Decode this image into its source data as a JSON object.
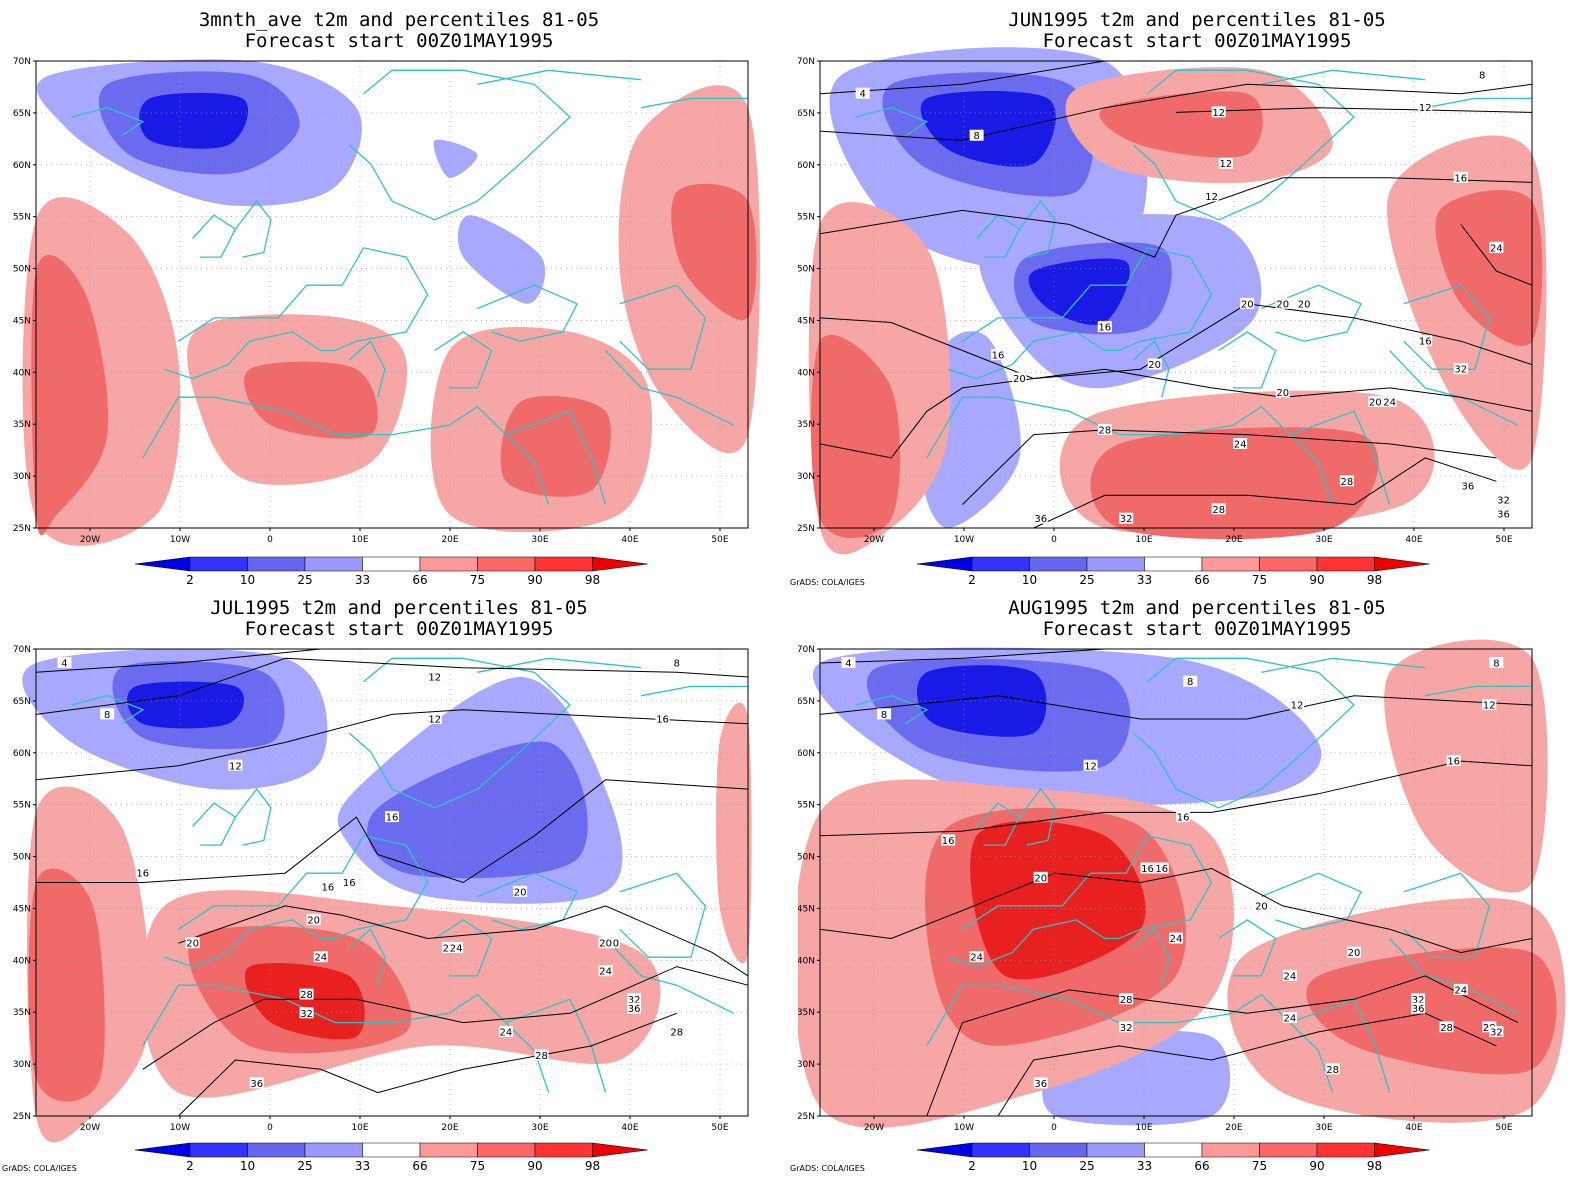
{
  "panels": [
    {
      "id": "p1",
      "title_line1": "3mnth_ave t2m and percentiles 81-05",
      "title_line2": "Forecast start 00Z01MAY1995",
      "credit": "",
      "contour_labels": []
    },
    {
      "id": "p2",
      "title_line1": "JUN1995 t2m and percentiles 81-05",
      "title_line2": "Forecast start 00Z01MAY1995",
      "credit": "GrADS: COLA/IGES",
      "contour_labels": [
        "4",
        "8",
        "8",
        "12",
        "12",
        "12",
        "12",
        "16",
        "16",
        "16",
        "16",
        "20",
        "20",
        "20",
        "20",
        "20",
        "20",
        "20",
        "24",
        "24",
        "24",
        "28",
        "28",
        "28",
        "32",
        "32",
        "32",
        "36",
        "36",
        "36"
      ]
    },
    {
      "id": "p3",
      "title_line1": "JUL1995 t2m and percentiles 81-05",
      "title_line2": "Forecast start 00Z01MAY1995",
      "credit": "GrADS: COLA/IGES",
      "contour_labels": [
        "4",
        "8",
        "8",
        "12",
        "12",
        "12",
        "16",
        "16",
        "16",
        "16",
        "16",
        "20",
        "20",
        "20",
        "20",
        "20",
        "24",
        "24",
        "24",
        "24",
        "24",
        "28",
        "28",
        "28",
        "32",
        "32",
        "36",
        "36"
      ]
    },
    {
      "id": "p4",
      "title_line1": "AUG1995 t2m and percentiles 81-05",
      "title_line2": "Forecast start 00Z01MAY1995",
      "credit": "GrADS: COLA/IGES",
      "contour_labels": [
        "4",
        "8",
        "8",
        "8",
        "12",
        "12",
        "12",
        "16",
        "16",
        "16",
        "16",
        "16",
        "20",
        "20",
        "20",
        "24",
        "24",
        "24",
        "24",
        "24",
        "28",
        "28",
        "28",
        "28",
        "32",
        "32",
        "32",
        "36",
        "36"
      ]
    }
  ],
  "lat_labels": [
    "70N",
    "65N",
    "60N",
    "55N",
    "50N",
    "45N",
    "40N",
    "35N",
    "30N",
    "25N"
  ],
  "lon_labels": [
    "20W",
    "10W",
    "0",
    "10E",
    "20E",
    "30E",
    "40E",
    "50E"
  ],
  "colorbar": {
    "labels": [
      "2",
      "10",
      "25",
      "33",
      "66",
      "75",
      "90",
      "98"
    ],
    "colors": [
      "#0000e6",
      "#3333ff",
      "#6666ee",
      "#9999ff",
      "#ffffff",
      "#ff9999",
      "#ff6666",
      "#ff3333",
      "#ee0000"
    ]
  },
  "palette": {
    "coast": "#2ec4c4",
    "contour": "#000000",
    "blue_light": "#a8a8ff",
    "blue_mid": "#6b6bf0",
    "blue_dark": "#1a1ae6",
    "red_light": "#f7a6a6",
    "red_mid": "#f06a6a",
    "red_dark": "#e82020"
  }
}
